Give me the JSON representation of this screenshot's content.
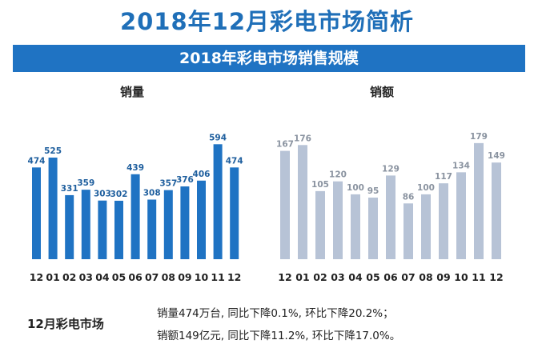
{
  "header": {
    "title": "2018年12月彩电市场简析",
    "banner": "2018年彩电市场销售规模"
  },
  "colors": {
    "title": "#1f6fb8",
    "banner": "#1f73c3",
    "volume_bar": "#1f73c3",
    "value_bar": "#b7c3d6",
    "volume_label": "#1f5f9e",
    "value_label": "#8a93a0"
  },
  "chart_data": [
    {
      "type": "bar",
      "title": "销量",
      "categories": [
        "12",
        "01",
        "02",
        "03",
        "04",
        "05",
        "06",
        "07",
        "08",
        "09",
        "10",
        "11",
        "12"
      ],
      "values": [
        474,
        525,
        331,
        359,
        303,
        302,
        439,
        308,
        357,
        376,
        406,
        594,
        474
      ],
      "ylim": [
        0,
        620
      ]
    },
    {
      "type": "bar",
      "title": "销额",
      "categories": [
        "12",
        "01",
        "02",
        "03",
        "04",
        "05",
        "06",
        "07",
        "08",
        "09",
        "10",
        "11",
        "12"
      ],
      "values": [
        167,
        176,
        105,
        120,
        100,
        95,
        129,
        86,
        100,
        117,
        134,
        179,
        149
      ],
      "ylim": [
        0,
        185
      ]
    }
  ],
  "footer": {
    "label": "12月彩电市场",
    "line1": "销量474万台, 同比下降0.1%, 环比下降20.2%；",
    "line2": "销额149亿元, 同比下降11.2%, 环比下降17.0%。"
  }
}
